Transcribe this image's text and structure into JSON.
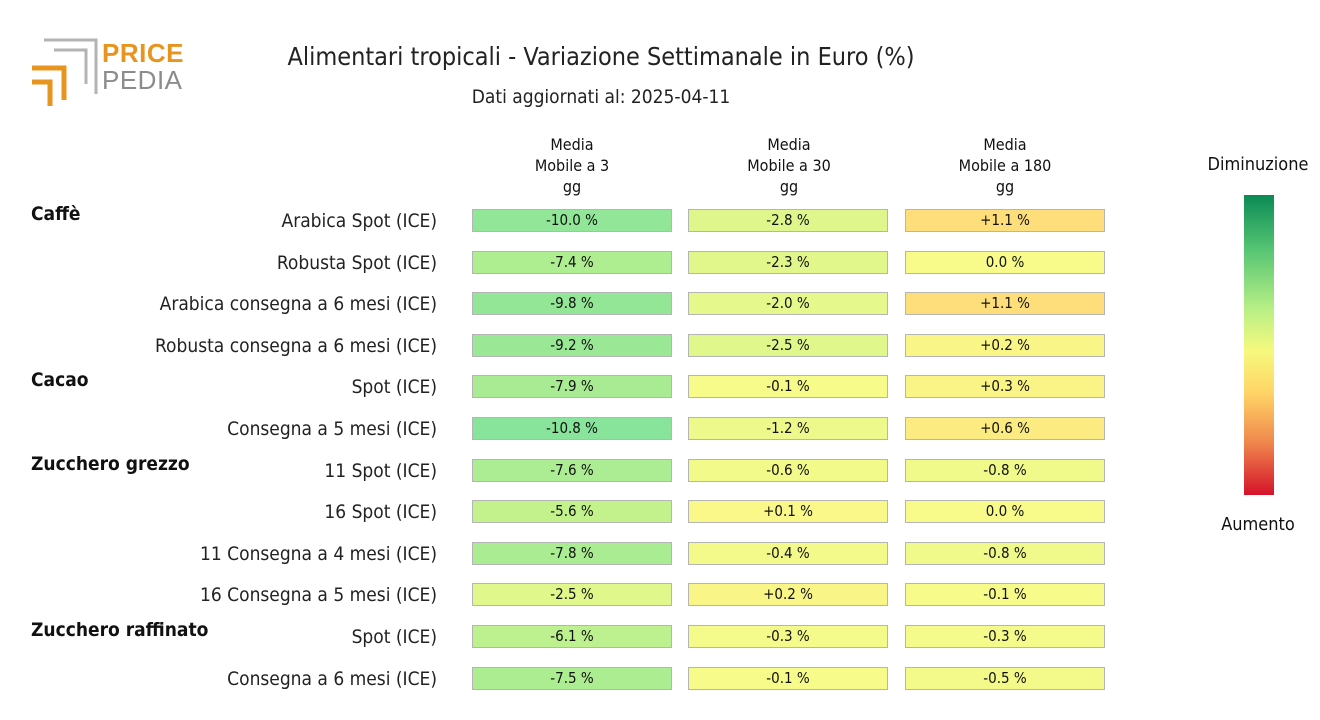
{
  "logo": {
    "line1": "PRICE",
    "line2": "PEDIA"
  },
  "chart_data": {
    "type": "heatmap",
    "title": "Alimentari tropicali - Variazione Settimanale in Euro (%)",
    "subtitle": "Dati aggiornati al: 2025-04-11",
    "columns": [
      "Media\nMobile a 3\ngg",
      "Media\nMobile a 30\ngg",
      "Media\nMobile a 180\ngg"
    ],
    "groups": [
      {
        "name": "Caffè",
        "rows": [
          {
            "label": "Arabica Spot (ICE)",
            "values": [
              -10.0,
              -2.8,
              1.1
            ],
            "texts": [
              "-10.0 %",
              "-2.8 %",
              "+1.1 %"
            ]
          },
          {
            "label": "Robusta Spot (ICE)",
            "values": [
              -7.4,
              -2.3,
              0.0
            ],
            "texts": [
              "-7.4 %",
              "-2.3 %",
              "0.0 %"
            ]
          },
          {
            "label": "Arabica consegna a 6 mesi (ICE)",
            "values": [
              -9.8,
              -2.0,
              1.1
            ],
            "texts": [
              "-9.8 %",
              "-2.0 %",
              "+1.1 %"
            ]
          },
          {
            "label": "Robusta consegna a 6 mesi (ICE)",
            "values": [
              -9.2,
              -2.5,
              0.2
            ],
            "texts": [
              "-9.2 %",
              "-2.5 %",
              "+0.2 %"
            ]
          }
        ]
      },
      {
        "name": "Cacao",
        "rows": [
          {
            "label": "Spot (ICE)",
            "values": [
              -7.9,
              -0.1,
              0.3
            ],
            "texts": [
              "-7.9 %",
              "-0.1 %",
              "+0.3 %"
            ]
          },
          {
            "label": "Consegna a 5 mesi (ICE)",
            "values": [
              -10.8,
              -1.2,
              0.6
            ],
            "texts": [
              "-10.8 %",
              "-1.2 %",
              "+0.6 %"
            ]
          }
        ]
      },
      {
        "name": "Zucchero grezzo",
        "rows": [
          {
            "label": "11 Spot (ICE)",
            "values": [
              -7.6,
              -0.6,
              -0.8
            ],
            "texts": [
              "-7.6 %",
              "-0.6 %",
              "-0.8 %"
            ]
          },
          {
            "label": "16 Spot (ICE)",
            "values": [
              -5.6,
              0.1,
              0.0
            ],
            "texts": [
              "-5.6 %",
              "+0.1 %",
              "0.0 %"
            ]
          },
          {
            "label": "11 Consegna a 4 mesi (ICE)",
            "values": [
              -7.8,
              -0.4,
              -0.8
            ],
            "texts": [
              "-7.8 %",
              "-0.4 %",
              "-0.8 %"
            ]
          },
          {
            "label": "16 Consegna a 5 mesi (ICE)",
            "values": [
              -2.5,
              0.2,
              -0.1
            ],
            "texts": [
              "-2.5 %",
              "+0.2 %",
              "-0.1 %"
            ]
          }
        ]
      },
      {
        "name": "Zucchero raffinato",
        "rows": [
          {
            "label": "Spot (ICE)",
            "values": [
              -6.1,
              -0.3,
              -0.3
            ],
            "texts": [
              "-6.1 %",
              "-0.3 %",
              "-0.3 %"
            ]
          },
          {
            "label": "Consegna a 6 mesi (ICE)",
            "values": [
              -7.5,
              -0.1,
              -0.5
            ],
            "texts": [
              "-7.5 %",
              "-0.1 %",
              "-0.5 %"
            ]
          }
        ]
      }
    ],
    "legend": {
      "top_label": "Diminuzione",
      "bottom_label": "Aumento",
      "placement": "right"
    },
    "colors": {
      "strong_decrease": "#0b8a55",
      "neutral": "#f6f97e",
      "mild_increase": "#ffd466",
      "strong_increase": "#d4122a"
    }
  }
}
